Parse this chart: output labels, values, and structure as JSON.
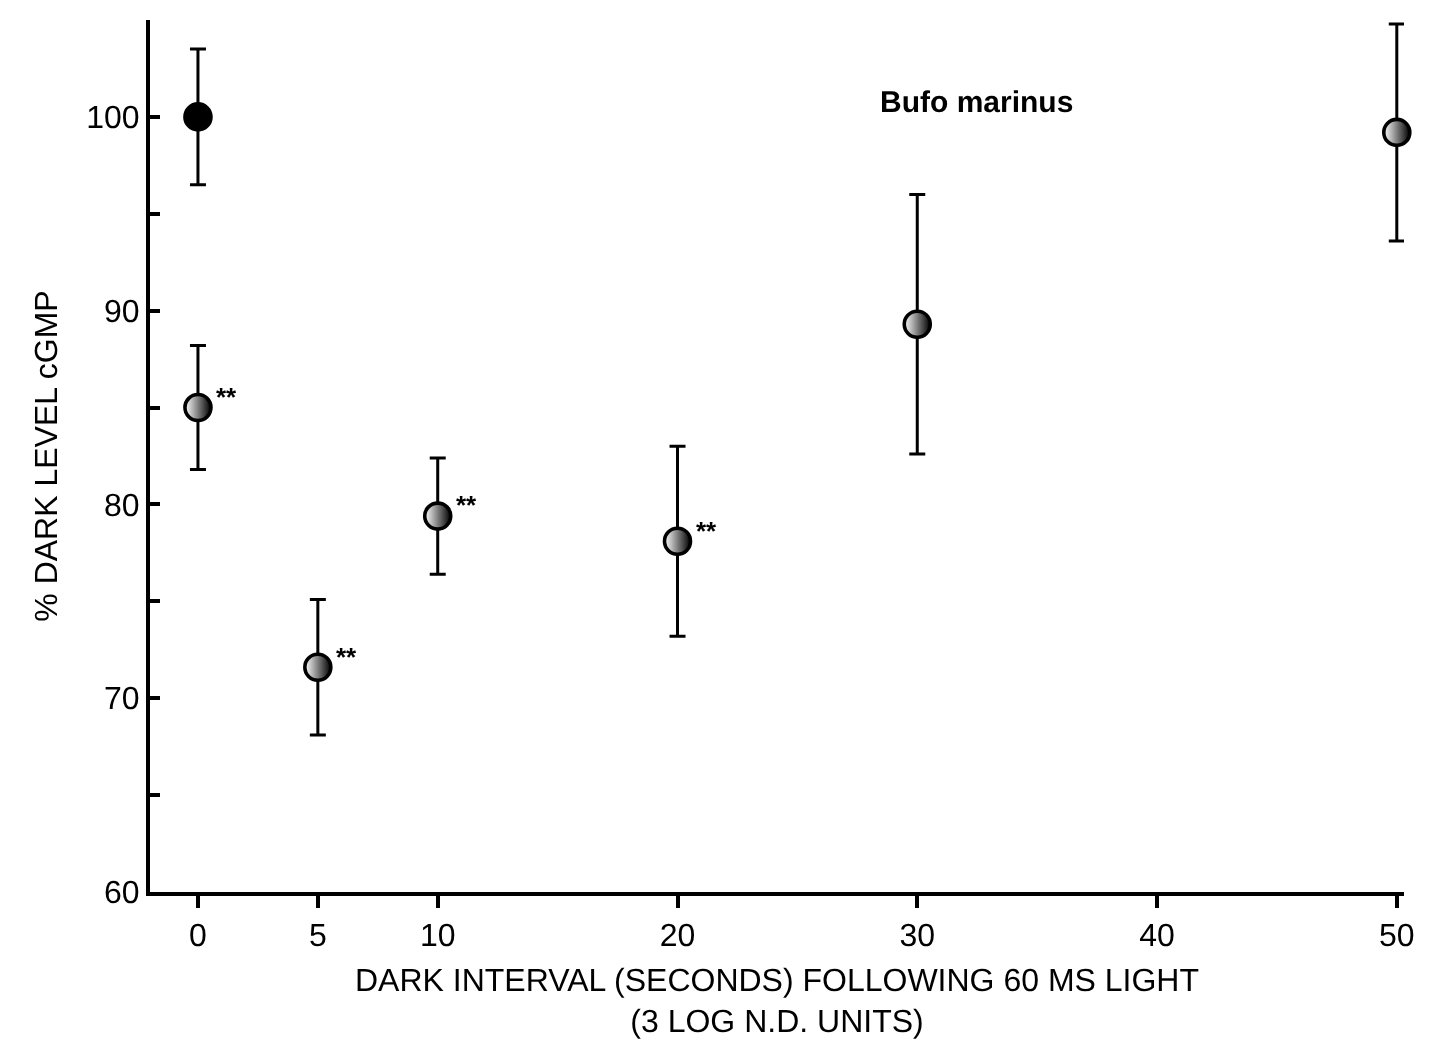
{
  "chart_data": {
    "type": "scatter",
    "xlabel": "DARK INTERVAL (SECONDS) FOLLOWING 60 MS LIGHT\n(3 LOG N.D. UNITS)",
    "ylabel": "% DARK LEVEL cGMP",
    "series": [
      {
        "color": "#000000",
        "x": [
          0
        ],
        "values": [
          100
        ],
        "errors": [
          3.5
        ]
      },
      {
        "color": "#000000",
        "x": [
          0,
          5,
          10,
          20,
          30,
          50
        ],
        "values": [
          85,
          71.6,
          79.4,
          78.1,
          89.3,
          99.2
        ],
        "errors": [
          3.2,
          3.5,
          3,
          4.9,
          6.7,
          5.6
        ]
      }
    ],
    "annotations": [
      {
        "text": "**",
        "x": 0,
        "y": 85
      },
      {
        "text": "**",
        "x": 5,
        "y": 71.6
      },
      {
        "text": "**",
        "x": 10,
        "y": 79.4
      },
      {
        "text": "**",
        "x": 20,
        "y": 78.1
      },
      "Bufo marinus"
    ],
    "xlim": [
      -2,
      50.3
    ],
    "xticks": [
      0,
      5,
      10,
      20,
      30,
      40,
      50
    ],
    "ylim": [
      60,
      105
    ],
    "yticks": [
      60,
      {
        "value": 65,
        "label": null
      },
      70,
      {
        "value": 75,
        "label": null
      },
      80,
      {
        "value": 85,
        "label": null
      },
      90,
      {
        "value": 95,
        "label": null
      },
      100
    ],
    "marker": "circle",
    "grid": false
  }
}
